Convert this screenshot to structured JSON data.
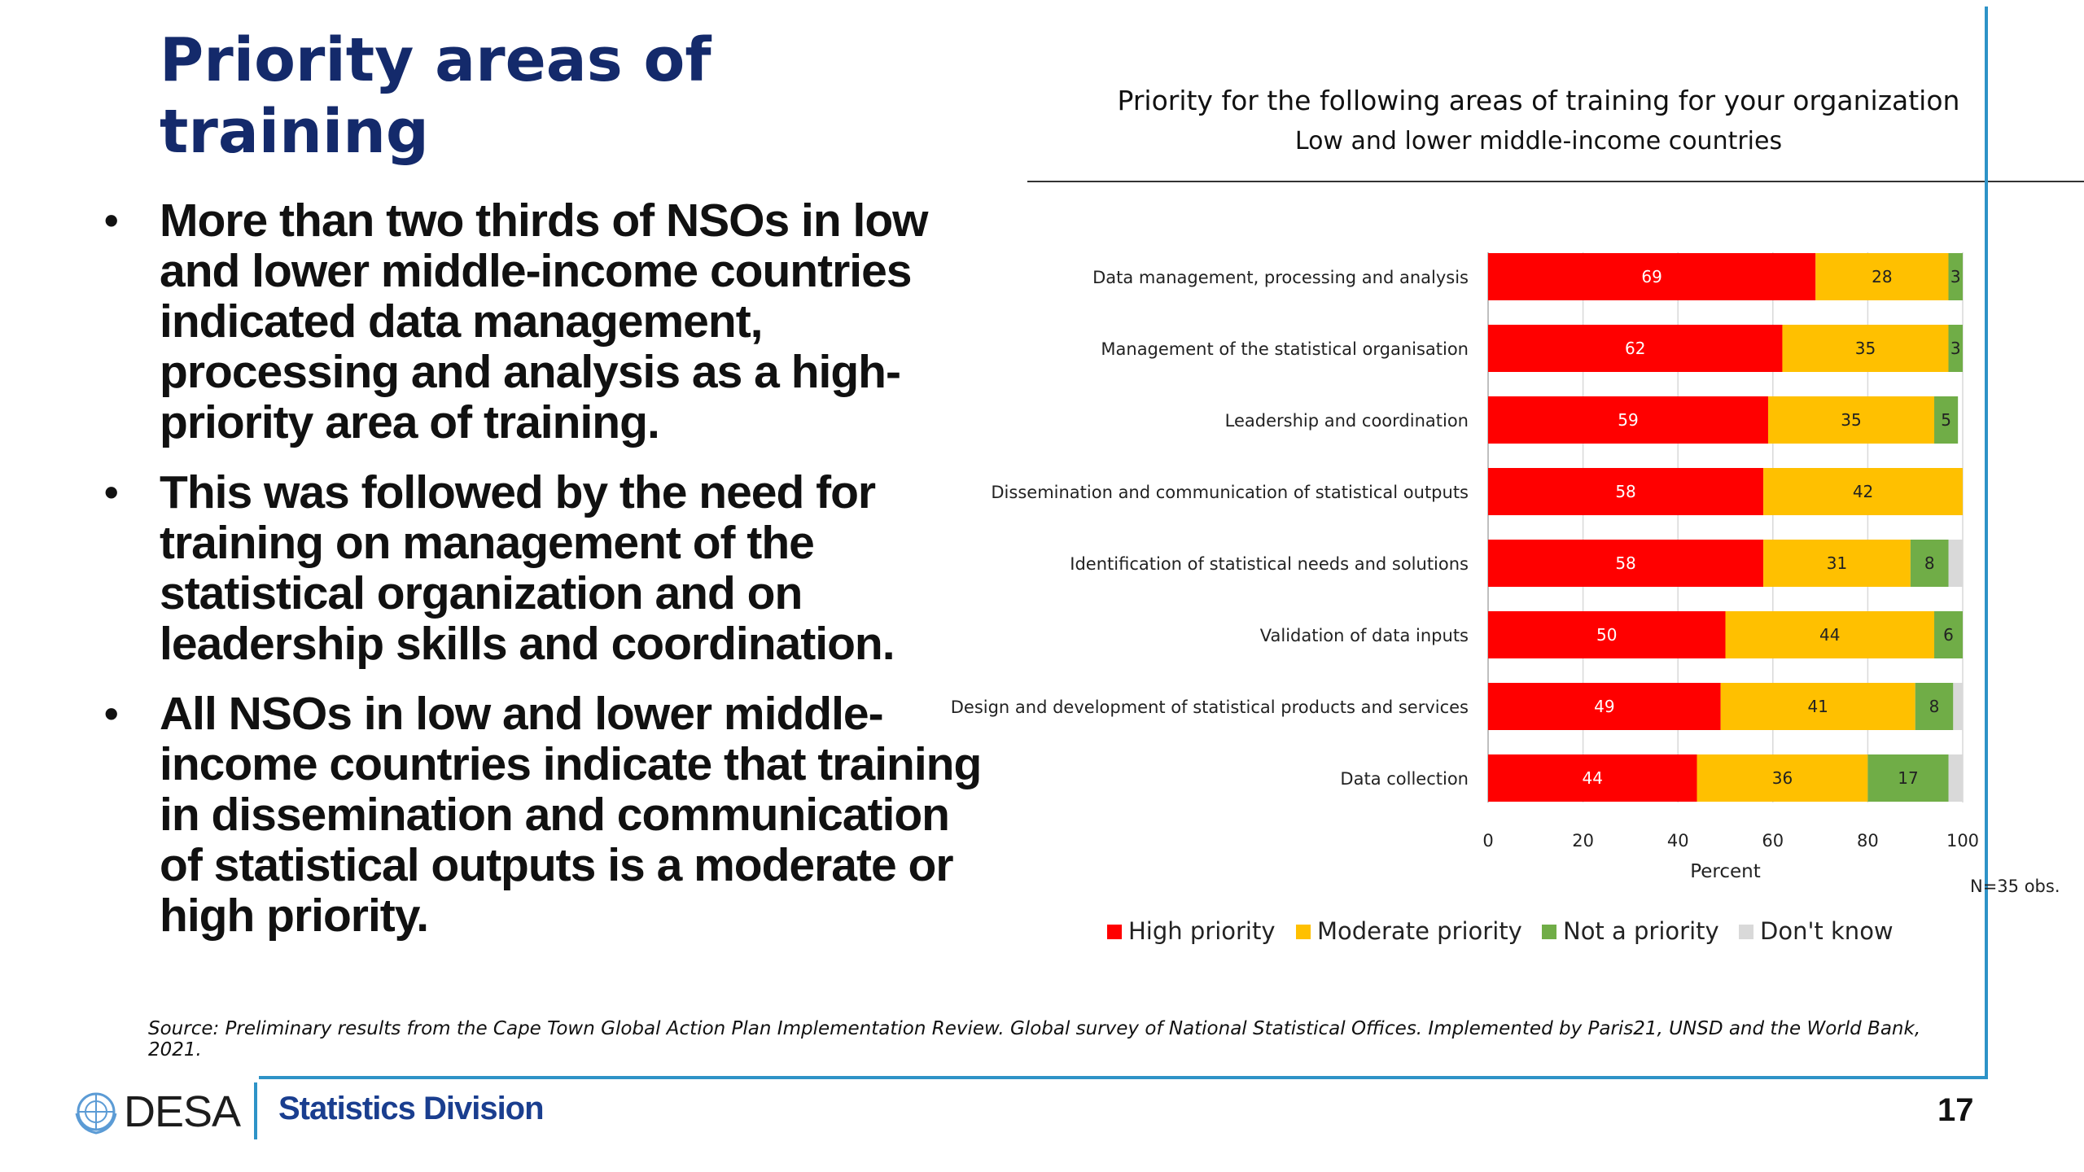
{
  "slide": {
    "title": "Priority areas of training",
    "bullets": [
      "More than two thirds of NSOs in low and lower middle-income countries indicated data management, processing and analysis as a high-priority area of training.",
      "This was followed by the need for training on management of the statistical organization and on leadership skills and coordination.",
      "All NSOs in low and lower middle-income countries indicate that training in dissemination and communication of statistical outputs is a moderate or high priority."
    ],
    "source": "Source: Preliminary results from the  Cape Town Global Action Plan Implementation Review. Global survey of National Statistical Offices. Implemented by Paris21, UNSD and the World Bank, 2021.",
    "footer": {
      "logo_text": "DESA",
      "division": "Statistics Division",
      "page_number": "17"
    }
  },
  "chart_data": {
    "type": "bar",
    "orientation": "horizontal",
    "stacked": true,
    "title": "Priority for the following areas of training for your organization",
    "subtitle": "Low and lower middle-income countries",
    "xlabel": "Percent",
    "ylabel": "",
    "xlim": [
      0,
      100
    ],
    "xticks": [
      0,
      20,
      40,
      60,
      80,
      100
    ],
    "note": "N=35 obs.",
    "legend_position": "bottom",
    "categories": [
      "Data management, processing and analysis",
      "Management of the statistical organisation",
      "Leadership and coordination",
      "Dissemination and communication of statistical outputs",
      "Identification of statistical needs and solutions",
      "Validation of data inputs",
      "Design and development of statistical products and services",
      "Data collection"
    ],
    "series": [
      {
        "name": "High priority",
        "color": "#ff0000",
        "values": [
          69,
          62,
          59,
          58,
          58,
          50,
          49,
          44
        ]
      },
      {
        "name": "Moderate priority",
        "color": "#ffc000",
        "values": [
          28,
          35,
          35,
          42,
          31,
          44,
          41,
          36
        ]
      },
      {
        "name": "Not a priority",
        "color": "#70ad47",
        "values": [
          3,
          3,
          5,
          0,
          8,
          6,
          8,
          17
        ]
      },
      {
        "name": "Don't know",
        "color": "#d9d9d9",
        "values": [
          0,
          0,
          0,
          0,
          3,
          0,
          2,
          3
        ]
      }
    ],
    "data_labels": [
      [
        "69",
        "28",
        "3",
        ""
      ],
      [
        "62",
        "35",
        "3",
        ""
      ],
      [
        "59",
        "35",
        "5",
        ""
      ],
      [
        "58",
        "42",
        "",
        ""
      ],
      [
        "58",
        "31",
        "8",
        ""
      ],
      [
        "50",
        "44",
        "6",
        ""
      ],
      [
        "49",
        "41",
        "8",
        ""
      ],
      [
        "44",
        "36",
        "17",
        ""
      ]
    ]
  }
}
